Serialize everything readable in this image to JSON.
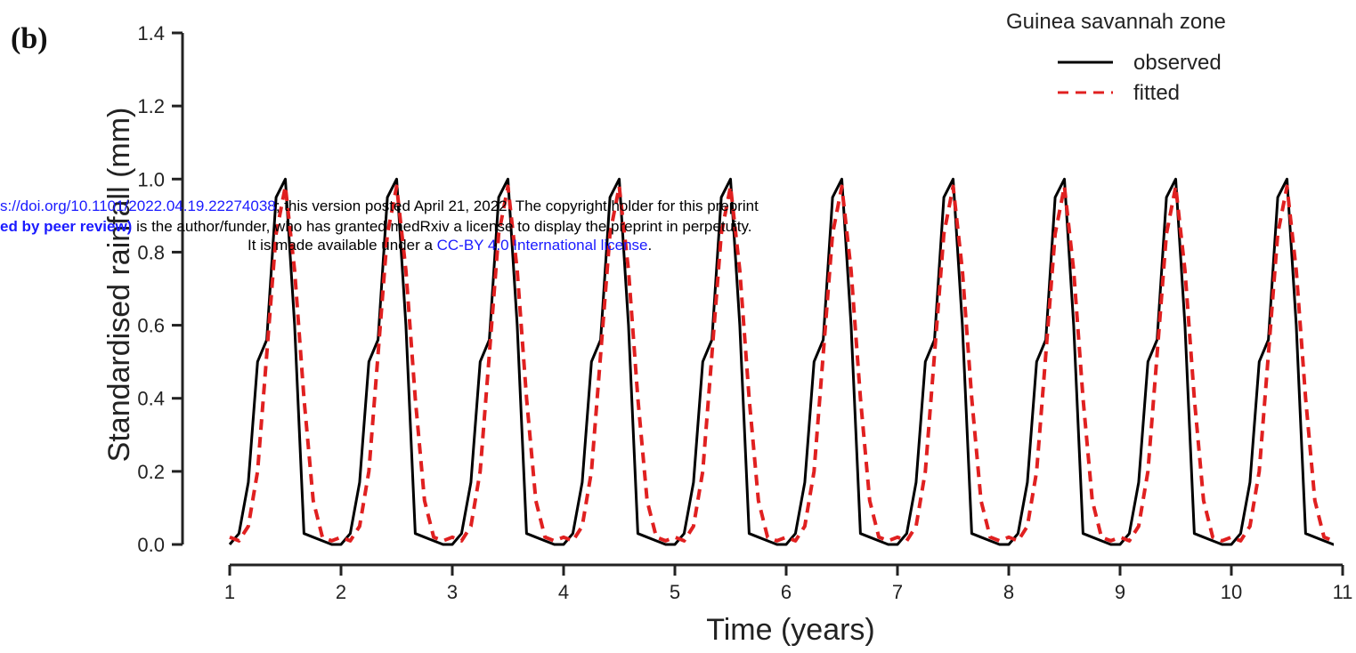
{
  "panel_label": "(b)",
  "watermark": {
    "line1_link": "s://doi.org/10.1101/2022.04.19.22274038",
    "line1_rest": "; this version posted April 21, 2022. The copyright holder for this preprint",
    "line2_bold": "ed by peer review)",
    "line2_rest": " is the author/funder, who has granted medRxiv a license to display the preprint in perpetuity.",
    "line3_pre": "It is made available under a ",
    "line3_link": "CC-BY 4.0 International license",
    "line3_post": "."
  },
  "colors": {
    "observed": "#000000",
    "fitted": "#e02020",
    "axis": "#222222"
  },
  "chart_data": {
    "type": "line",
    "title": "",
    "legend_title": "Guinea savannah zone",
    "legend_position": "top-right",
    "xlabel": "Time (years)",
    "ylabel": "Standardised rainfall (mm)",
    "xlim": [
      1,
      11
    ],
    "ylim": [
      0,
      1.4
    ],
    "xticks": [
      1,
      2,
      3,
      4,
      5,
      6,
      7,
      8,
      9,
      10,
      11
    ],
    "xtick_labels": [
      "1",
      "2",
      "3",
      "4",
      "5",
      "6",
      "7",
      "8",
      "9",
      "10",
      "11"
    ],
    "yticks": [
      0,
      0.2,
      0.4,
      0.6,
      0.8,
      1.0,
      1.2,
      1.4
    ],
    "ytick_labels": [
      "0.0",
      "0.2",
      "0.4",
      "0.6",
      "0.8",
      "1.0",
      "1.2",
      "1.4"
    ],
    "grid": false,
    "cycle_years": 10,
    "series": [
      {
        "name": "observed",
        "style": "solid",
        "cycle_phase": [
          0,
          0.083,
          0.167,
          0.25,
          0.333,
          0.417,
          0.5,
          0.583,
          0.667,
          0.75,
          0.833,
          0.917
        ],
        "cycle_values": [
          0.0,
          0.03,
          0.17,
          0.5,
          0.56,
          0.95,
          1.0,
          0.6,
          0.03,
          0.02,
          0.01,
          0.0
        ]
      },
      {
        "name": "fitted",
        "style": "dashed",
        "cycle_phase": [
          0,
          0.083,
          0.167,
          0.25,
          0.333,
          0.417,
          0.5,
          0.583,
          0.667,
          0.75,
          0.833,
          0.917
        ],
        "cycle_values": [
          0.02,
          0.01,
          0.05,
          0.2,
          0.52,
          0.85,
          0.98,
          0.75,
          0.4,
          0.12,
          0.02,
          0.01
        ]
      }
    ]
  }
}
